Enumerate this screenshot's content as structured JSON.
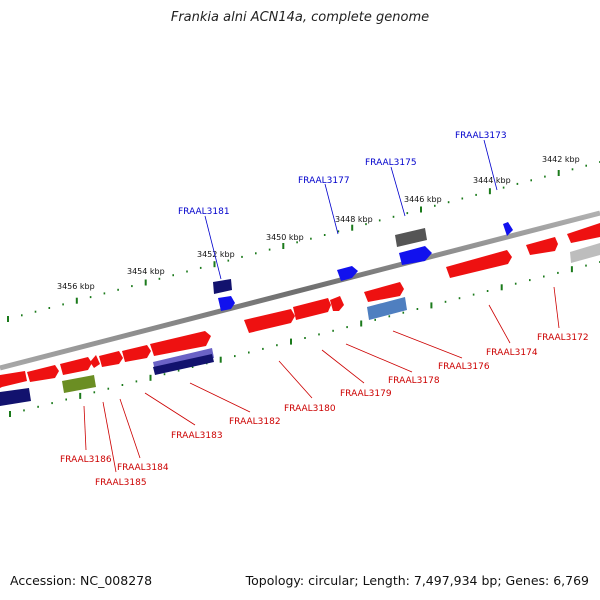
{
  "title": "Frankia alni ACN14a, complete genome",
  "footer": {
    "accession": "Accession: NC_008278",
    "summary": "Topology: circular; Length: 7,497,934 bp; Genes: 6,769"
  },
  "scale_labels": [
    "3456 kbp",
    "3454 kbp",
    "3452 kbp",
    "3450 kbp",
    "3448 kbp",
    "3446 kbp",
    "3444 kbp",
    "3442 kbp"
  ],
  "top_gene_labels": [
    "FRAAL3181",
    "FRAAL3177",
    "FRAAL3175",
    "FRAAL3173"
  ],
  "bottom_gene_labels": [
    "FRAAL3186",
    "FRAAL3185",
    "FRAAL3184",
    "FRAAL3183",
    "FRAAL3182",
    "FRAAL3180",
    "FRAAL3179",
    "FRAAL3178",
    "FRAAL3176",
    "FRAAL3174",
    "FRAAL3172"
  ],
  "colors": {
    "forward_gene": "#ee1111",
    "reverse_gene": "#1111ee",
    "dark_navy_gene": "#12126e",
    "lavender_gene": "#6a62c6",
    "olive_gene": "#6b8e23",
    "steel_gene": "#4f7fc0",
    "gray_gene": "#555555",
    "light_gray_gene": "#bdbdbd",
    "backbone": "#777777",
    "tick": "#1b7a1b",
    "label_top": "#0000cc",
    "label_bottom": "#cc0000"
  }
}
